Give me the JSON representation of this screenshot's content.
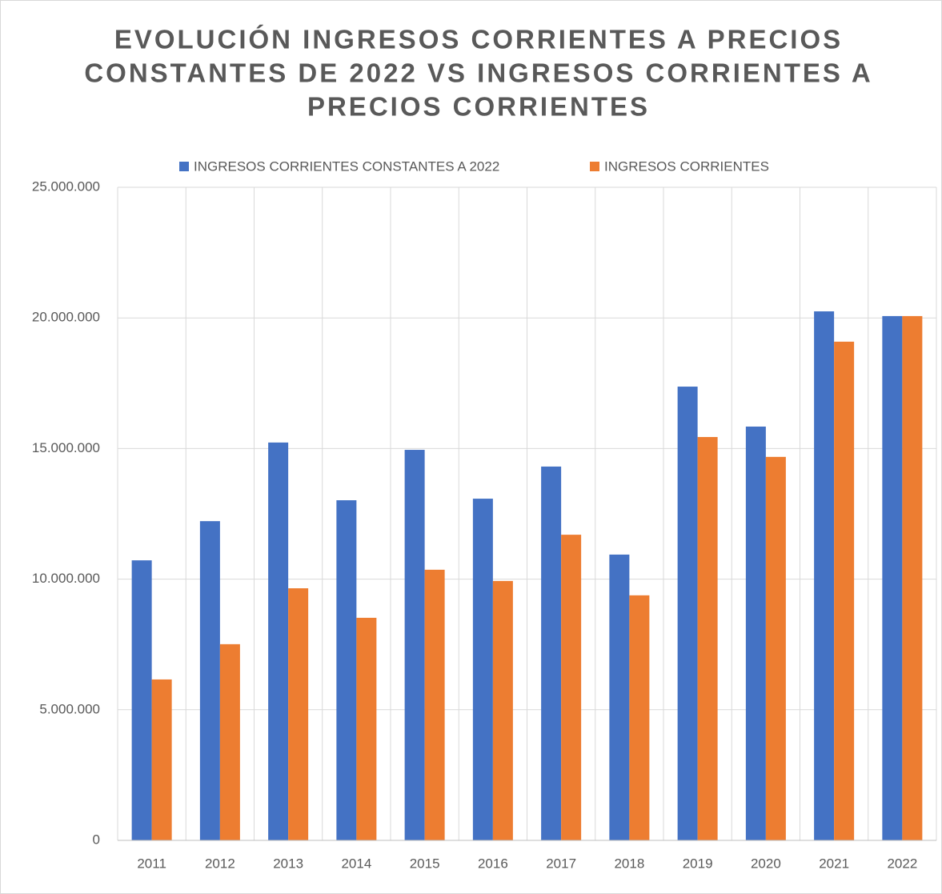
{
  "chart_data": {
    "type": "bar",
    "title": [
      "EVOLUCIÓN INGRESOS CORRIENTES A PRECIOS",
      "CONSTANTES DE 2022 VS INGRESOS CORRIENTES A",
      "PRECIOS CORRIENTES"
    ],
    "categories": [
      "2011",
      "2012",
      "2013",
      "2014",
      "2015",
      "2016",
      "2017",
      "2018",
      "2019",
      "2020",
      "2021",
      "2022"
    ],
    "series": [
      {
        "name": "INGRESOS CORRIENTES CONSTANTES A 2022",
        "color": "#4472c4",
        "values": [
          10720000,
          12220000,
          15230000,
          13020000,
          14950000,
          13080000,
          14310000,
          10940000,
          17370000,
          15840000,
          20250000,
          20070000
        ]
      },
      {
        "name": "INGRESOS CORRIENTES",
        "color": "#ed7d31",
        "values": [
          6160000,
          7510000,
          9650000,
          8520000,
          10360000,
          9930000,
          11700000,
          9380000,
          15440000,
          14680000,
          19090000,
          20070000
        ]
      }
    ],
    "ylim": [
      0,
      25000000
    ],
    "yticks": [
      0,
      {
        "value": 5000000,
        "label": "5.000.000"
      },
      {
        "value": 10000000,
        "label": "10.000.000"
      },
      {
        "value": 15000000,
        "label": "15.000.000"
      },
      {
        "value": 20000000,
        "label": "20.000.000"
      },
      {
        "value": 25000000,
        "label": "25.000.000"
      }
    ],
    "grid": true,
    "legend": "top"
  }
}
